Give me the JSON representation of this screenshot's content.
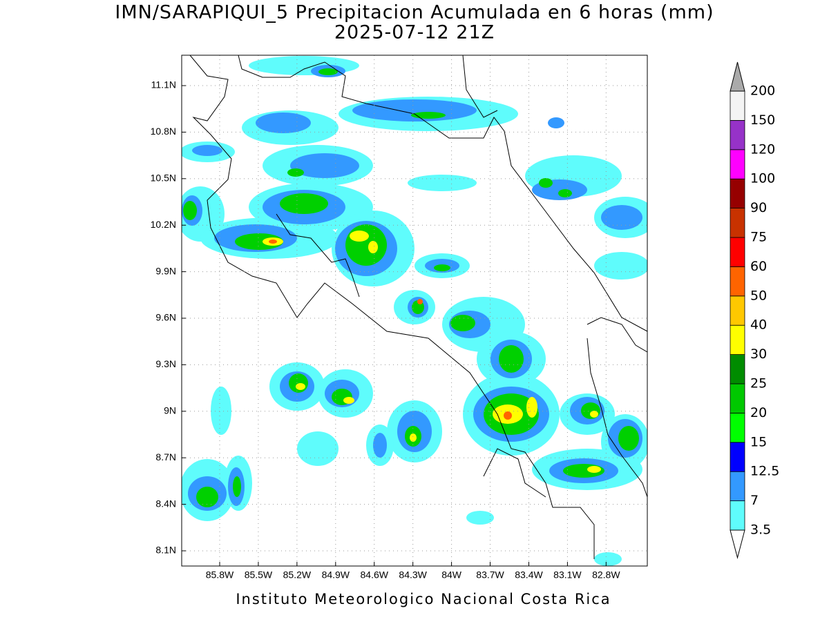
{
  "header": {
    "title": "IMN/SARAPIQUI_5 Precipitacion Acumulada en 6 horas (mm)",
    "subtitle": "2025-07-12 21Z"
  },
  "map": {
    "xlim": [
      -86.095,
      -82.48
    ],
    "ylim": [
      8.002,
      11.296
    ],
    "xticks": [
      {
        "value": -85.8,
        "label": "85.8W"
      },
      {
        "value": -85.5,
        "label": "85.5W"
      },
      {
        "value": -85.2,
        "label": "85.2W"
      },
      {
        "value": -84.9,
        "label": "84.9W"
      },
      {
        "value": -84.6,
        "label": "84.6W"
      },
      {
        "value": -84.3,
        "label": "84.3W"
      },
      {
        "value": -84.0,
        "label": "84W"
      },
      {
        "value": -83.7,
        "label": "83.7W"
      },
      {
        "value": -83.4,
        "label": "83.4W"
      },
      {
        "value": -83.1,
        "label": "83.1W"
      },
      {
        "value": -82.8,
        "label": "82.8W"
      }
    ],
    "yticks": [
      {
        "value": 8.1,
        "label": "8.1N"
      },
      {
        "value": 8.4,
        "label": "8.4N"
      },
      {
        "value": 8.7,
        "label": "8.7N"
      },
      {
        "value": 9.0,
        "label": "9N"
      },
      {
        "value": 9.3,
        "label": "9.3N"
      },
      {
        "value": 9.6,
        "label": "9.6N"
      },
      {
        "value": 9.9,
        "label": "9.9N"
      },
      {
        "value": 10.2,
        "label": "10.2N"
      },
      {
        "value": 10.5,
        "label": "10.5N"
      },
      {
        "value": 10.8,
        "label": "10.8N"
      },
      {
        "value": 11.1,
        "label": "11.1N"
      }
    ],
    "grid": true
  },
  "colorbar": {
    "levels": [
      3.5,
      7,
      12.5,
      15,
      20,
      25,
      30,
      40,
      50,
      60,
      75,
      90,
      100,
      120,
      150,
      200
    ],
    "colors": [
      "#5ffcfc",
      "#3399ff",
      "#0000ff",
      "#00ff00",
      "#00c800",
      "#008c00",
      "#ffff00",
      "#ffc800",
      "#ff6400",
      "#ff0000",
      "#c83200",
      "#960000",
      "#ff00ff",
      "#9632c8",
      "#f4f4f4"
    ],
    "under_color": "#ffffff",
    "over_color": "#aaaaaa"
  },
  "footer": "Instituto Meteorologico Nacional Costa Rica"
}
